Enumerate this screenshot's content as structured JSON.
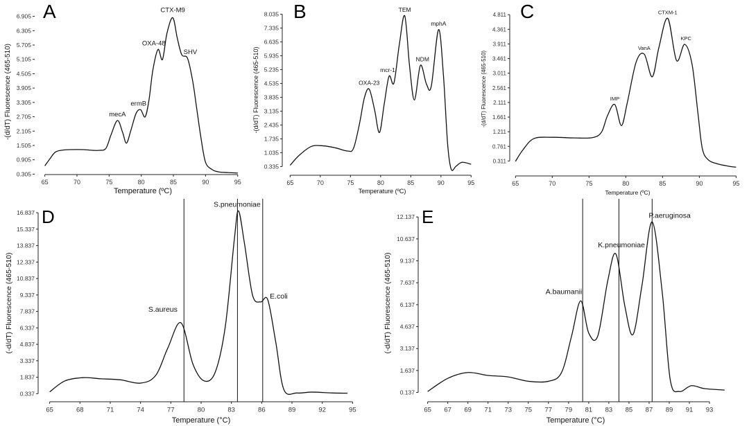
{
  "chart_data": [
    {
      "type": "line",
      "panel": "A",
      "xlabel": "Temperature (ºC)",
      "ylabel": "-(d/dT) Fluorescence (465-510)",
      "xlim": [
        64.5,
        96
      ],
      "ylim": [
        0.2,
        7.3
      ],
      "x_ticks": [
        65,
        70,
        75,
        80,
        85,
        90,
        95
      ],
      "y_ticks": [
        0.305,
        0.905,
        1.505,
        2.105,
        2.705,
        3.305,
        3.905,
        4.505,
        5.105,
        5.705,
        6.305,
        6.905
      ],
      "y_tick_labels": [
        "0.305",
        "0.905",
        "1.505",
        "2.105",
        "2.705",
        "3.305",
        "3.905",
        "4.505",
        "5.105",
        "5.705",
        "6.305",
        "6.905"
      ],
      "x_tick_labels": [
        "65",
        "70",
        "75",
        "80",
        "85",
        "90",
        "95"
      ],
      "series": [
        {
          "x": [
            65,
            65.8,
            66.6,
            67.5,
            69,
            71,
            72.5,
            73.5,
            74.5,
            75.3,
            76.3,
            77.1,
            77.7,
            78.4,
            79.2,
            79.9,
            80.6,
            81.2,
            81.8,
            82.6,
            83.3,
            84.0,
            84.9,
            85.6,
            86.3,
            87.2,
            88.0,
            88.6,
            89.3,
            90,
            91,
            92,
            93.5,
            95
          ],
          "y": [
            0.65,
            0.95,
            1.22,
            1.3,
            1.33,
            1.33,
            1.3,
            1.3,
            1.38,
            1.95,
            2.55,
            2.05,
            1.6,
            2.15,
            2.85,
            3.0,
            2.7,
            3.4,
            4.65,
            5.52,
            5.1,
            6.2,
            6.85,
            6.0,
            5.3,
            5.15,
            4.2,
            3.1,
            1.8,
            0.8,
            0.5,
            0.4,
            0.37,
            0.35
          ]
        }
      ],
      "annotations": [
        {
          "text": "mecA",
          "x": 76.3,
          "y": 2.55
        },
        {
          "text": "ermB",
          "x": 79.9,
          "y": 3.0
        },
        {
          "text": "OXA-48",
          "x": 82.6,
          "y": 5.52
        },
        {
          "text": "CTX-M9",
          "x": 84.9,
          "y": 6.85
        },
        {
          "text": "SHV",
          "x": 87.2,
          "y": 5.15
        }
      ]
    },
    {
      "type": "line",
      "panel": "B",
      "xlabel": "Temperature (ºC)",
      "ylabel": "-(d/dT) Fluorescence (465-510)",
      "xlim": [
        64.5,
        96
      ],
      "ylim": [
        0.0,
        8.4
      ],
      "x_ticks": [
        65,
        70,
        75,
        80,
        85,
        90,
        95
      ],
      "y_ticks": [
        0.335,
        1.035,
        1.735,
        2.435,
        3.135,
        3.835,
        4.535,
        5.235,
        5.935,
        6.635,
        7.335,
        8.035
      ],
      "y_tick_labels": [
        "0.335",
        "1.035",
        "1.735",
        "2.435",
        "3.135",
        "3.835",
        "4.535",
        "5.235",
        "5.935",
        "6.635",
        "7.335",
        "8.035"
      ],
      "x_tick_labels": [
        "65",
        "70",
        "75",
        "80",
        "85",
        "90",
        "95"
      ],
      "series": [
        {
          "x": [
            65,
            66.5,
            68.5,
            70.5,
            72.5,
            74.5,
            75.5,
            76.5,
            77.3,
            78.1,
            79.0,
            79.8,
            80.6,
            81.4,
            82.2,
            83.1,
            84.0,
            84.8,
            85.6,
            86.6,
            87.6,
            88.4,
            89.6,
            90.4,
            91.1,
            91.7,
            92.5,
            93.5,
            95
          ],
          "y": [
            0.4,
            0.9,
            1.35,
            1.38,
            1.28,
            1.12,
            1.25,
            2.5,
            3.8,
            4.25,
            3.2,
            2.05,
            3.5,
            4.9,
            4.55,
            6.5,
            7.95,
            5.4,
            3.7,
            5.45,
            4.5,
            4.4,
            7.25,
            5.0,
            1.5,
            0.2,
            0.35,
            0.55,
            0.45
          ]
        }
      ],
      "annotations": [
        {
          "text": "OXA-23",
          "x": 78.1,
          "y": 4.25
        },
        {
          "text": "mcr-1",
          "x": 81.4,
          "y": 4.9
        },
        {
          "text": "TEM",
          "x": 84.0,
          "y": 7.95
        },
        {
          "text": "NDM",
          "x": 86.6,
          "y": 5.45
        },
        {
          "text": "mphA",
          "x": 89.6,
          "y": 7.25
        }
      ]
    },
    {
      "type": "line",
      "panel": "C",
      "xlabel": "Temperature (ºC)",
      "ylabel": "-(d/dT) Fluorescence (465-510)",
      "xlim": [
        64.5,
        96
      ],
      "ylim": [
        0.0,
        5.05
      ],
      "x_ticks": [
        65,
        70,
        75,
        80,
        85,
        90,
        95
      ],
      "y_ticks": [
        0.311,
        0.761,
        1.211,
        1.661,
        2.111,
        2.561,
        3.011,
        3.461,
        3.911,
        4.361,
        4.811
      ],
      "y_tick_labels": [
        "0.311",
        "0.761",
        "1.211",
        "1.661",
        "2.111",
        "2.561",
        "3.011",
        "3.461",
        "3.911",
        "4.361",
        "4.811"
      ],
      "x_tick_labels": [
        "65",
        "70",
        "75",
        "80",
        "85",
        "90",
        "95"
      ],
      "series": [
        {
          "x": [
            65,
            66,
            67.5,
            70,
            73,
            75.5,
            76.7,
            77.5,
            78.5,
            79.4,
            80.2,
            81.4,
            82.5,
            83.6,
            84.5,
            85.7,
            86.9,
            88.0,
            89.0,
            89.8,
            90.4,
            91.2,
            92.5,
            94,
            95
          ],
          "y": [
            0.3,
            0.65,
            1.0,
            1.04,
            1.02,
            1.03,
            1.2,
            1.7,
            2.05,
            1.4,
            2.1,
            3.35,
            3.6,
            2.9,
            3.8,
            4.7,
            3.4,
            3.9,
            3.3,
            1.8,
            0.7,
            0.35,
            0.22,
            0.15,
            0.12
          ]
        }
      ],
      "annotations": [
        {
          "text": "IMP",
          "x": 78.5,
          "y": 2.05
        },
        {
          "text": "VanA",
          "x": 82.5,
          "y": 3.6
        },
        {
          "text": "CTXM-1",
          "x": 85.7,
          "y": 4.7
        },
        {
          "text": "KPC",
          "x": 88.0,
          "y": 3.9
        }
      ]
    },
    {
      "type": "line",
      "panel": "D",
      "xlabel": "Temperature (°C)",
      "ylabel": "(-d/dT) Fluorescence (465-510)",
      "xlim": [
        64.2,
        95.8
      ],
      "ylim": [
        -0.4,
        17.6
      ],
      "x_ticks": [
        65,
        68,
        71,
        74,
        77,
        80,
        83,
        86,
        89,
        92,
        95
      ],
      "y_ticks": [
        0.337,
        1.837,
        3.337,
        4.837,
        6.337,
        7.837,
        9.337,
        10.837,
        12.337,
        13.837,
        15.337,
        16.837
      ],
      "y_tick_labels": [
        "0.337",
        "1.837",
        "3.337",
        "4.837",
        "6.337",
        "7.837",
        "9.337",
        "10.837",
        "12.337",
        "13.837",
        "15.337",
        "16.837"
      ],
      "x_tick_labels": [
        "65",
        "68",
        "71",
        "74",
        "77",
        "80",
        "83",
        "86",
        "89",
        "92",
        "95"
      ],
      "series": [
        {
          "x": [
            65,
            66.5,
            68.3,
            70,
            72,
            74,
            75.5,
            76.7,
            78,
            79.2,
            80.3,
            81.4,
            82.4,
            83.3,
            83.7,
            84.3,
            85.1,
            85.9,
            86.6,
            87.4,
            88.2,
            89.5,
            91,
            93,
            94.5
          ],
          "y": [
            0.5,
            1.5,
            1.8,
            1.7,
            1.6,
            1.3,
            2.0,
            4.5,
            6.8,
            3.0,
            1.5,
            2.3,
            6.5,
            14.5,
            17.0,
            14.0,
            9.3,
            8.7,
            8.9,
            5.0,
            0.7,
            0.4,
            0.48,
            0.4,
            0.38
          ]
        }
      ],
      "markers": [
        78.3,
        83.6,
        86.1
      ],
      "annotations": [
        {
          "text": "S.aureus",
          "x": 78.0,
          "y": 6.8
        },
        {
          "text": "S.pneumoniae",
          "x": 83.7,
          "y": 17.0
        },
        {
          "text": "E.coli",
          "x": 86.6,
          "y": 8.9
        }
      ]
    },
    {
      "type": "line",
      "panel": "E",
      "xlabel": "Temperature (°C)",
      "ylabel": "(-d/dT) Fluorescence (465-510)",
      "xlim": [
        64.2,
        95.2
      ],
      "ylim": [
        -0.5,
        13.0
      ],
      "x_ticks": [
        65,
        67,
        69,
        71,
        73,
        75,
        77,
        79,
        81,
        83,
        85,
        87,
        89,
        91,
        93
      ],
      "y_ticks": [
        0.137,
        1.637,
        3.137,
        4.637,
        6.137,
        7.637,
        9.137,
        10.637,
        12.137
      ],
      "y_tick_labels": [
        "0.137",
        "1.637",
        "3.137",
        "4.637",
        "6.137",
        "7.637",
        "9.137",
        "10.637",
        "12.137"
      ],
      "x_tick_labels": [
        "65",
        "67",
        "69",
        "71",
        "73",
        "75",
        "77",
        "79",
        "81",
        "83",
        "85",
        "87",
        "89",
        "91",
        "93"
      ],
      "series": [
        {
          "x": [
            65,
            67,
            69,
            71,
            73,
            75,
            77,
            78.3,
            79.3,
            80.2,
            81.0,
            81.9,
            82.9,
            83.7,
            84.6,
            85.4,
            86.3,
            87.3,
            88.3,
            89.1,
            90,
            91.2,
            92.5,
            94.5
          ],
          "y": [
            0.2,
            1.1,
            1.5,
            1.3,
            1.2,
            0.9,
            0.9,
            1.5,
            4.0,
            6.4,
            4.2,
            4.0,
            7.8,
            9.6,
            6.0,
            4.1,
            7.5,
            11.8,
            7.0,
            1.0,
            0.2,
            0.6,
            0.4,
            0.3
          ]
        }
      ],
      "markers": [
        80.4,
        84.0,
        87.3
      ],
      "annotations": [
        {
          "text": "A.baumanii",
          "x": 80.2,
          "y": 6.4
        },
        {
          "text": "K.pneumoniae",
          "x": 83.7,
          "y": 9.6
        },
        {
          "text": "P.aeruginosa",
          "x": 87.3,
          "y": 11.8
        }
      ]
    }
  ]
}
